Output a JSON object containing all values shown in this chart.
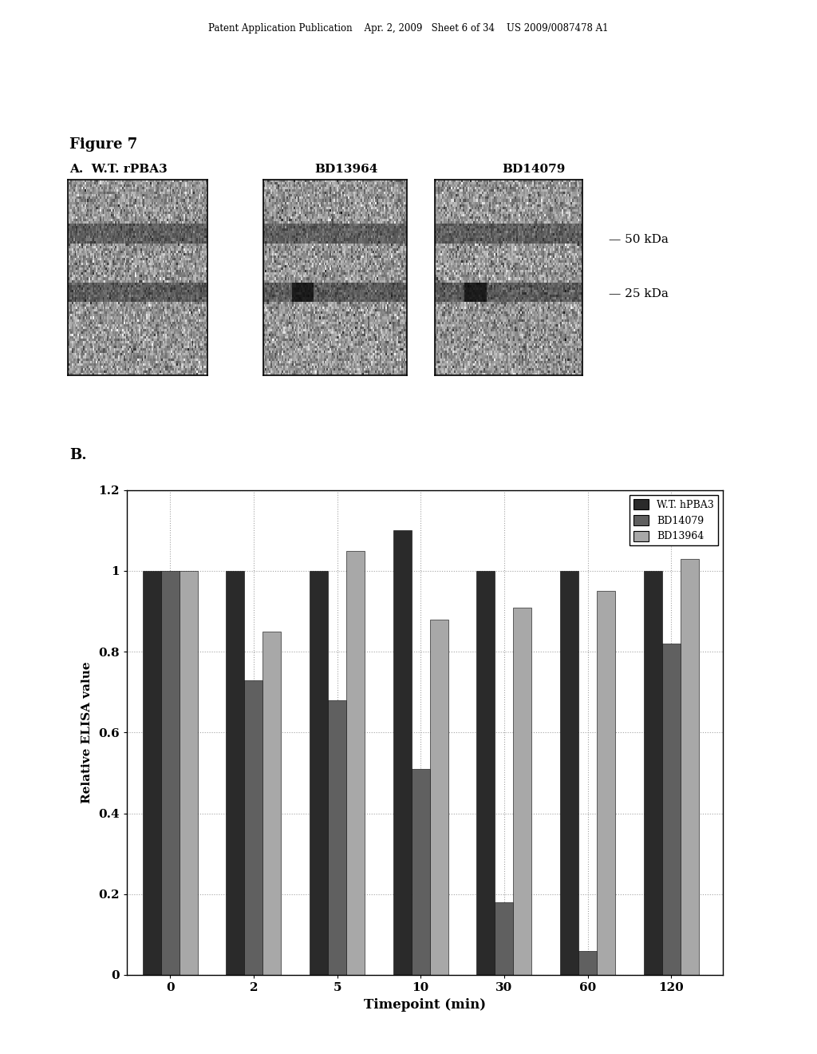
{
  "header_text": "Patent Application Publication    Apr. 2, 2009   Sheet 6 of 34    US 2009/0087478 A1",
  "figure_label": "Figure 7",
  "panel_a_label": "A.  W.T. rPBA3",
  "panel_a_label2": "BD13964",
  "panel_a_label3": "BD14079",
  "panel_a_markers": [
    "50 kDa",
    "25 kDa"
  ],
  "panel_b_label": "B.",
  "bar_categories": [
    "0",
    "2",
    "5",
    "10",
    "30",
    "60",
    "120"
  ],
  "series": [
    {
      "name": "W.T. hPBA3",
      "color": "#2a2a2a",
      "values": [
        1.0,
        1.0,
        1.0,
        1.1,
        1.0,
        1.0,
        1.0
      ]
    },
    {
      "name": "BD14079",
      "color": "#606060",
      "values": [
        1.0,
        0.73,
        0.68,
        0.51,
        0.18,
        0.06,
        0.82
      ]
    },
    {
      "name": "BD13964",
      "color": "#a8a8a8",
      "values": [
        1.0,
        0.85,
        1.05,
        0.88,
        0.91,
        0.95,
        1.03
      ]
    }
  ],
  "ylim": [
    0,
    1.2
  ],
  "yticks": [
    0,
    0.2,
    0.4,
    0.6,
    0.8,
    1.0,
    1.2
  ],
  "ylabel": "Relative ELISA value",
  "xlabel": "Timepoint (min)",
  "background_color": "#ffffff",
  "grid_color": "#999999",
  "legend_pos": "upper right",
  "gel_noise_seed": [
    10,
    20,
    30
  ],
  "gel_band1_rows": [
    18,
    26
  ],
  "gel_band2_rows": [
    42,
    50
  ]
}
